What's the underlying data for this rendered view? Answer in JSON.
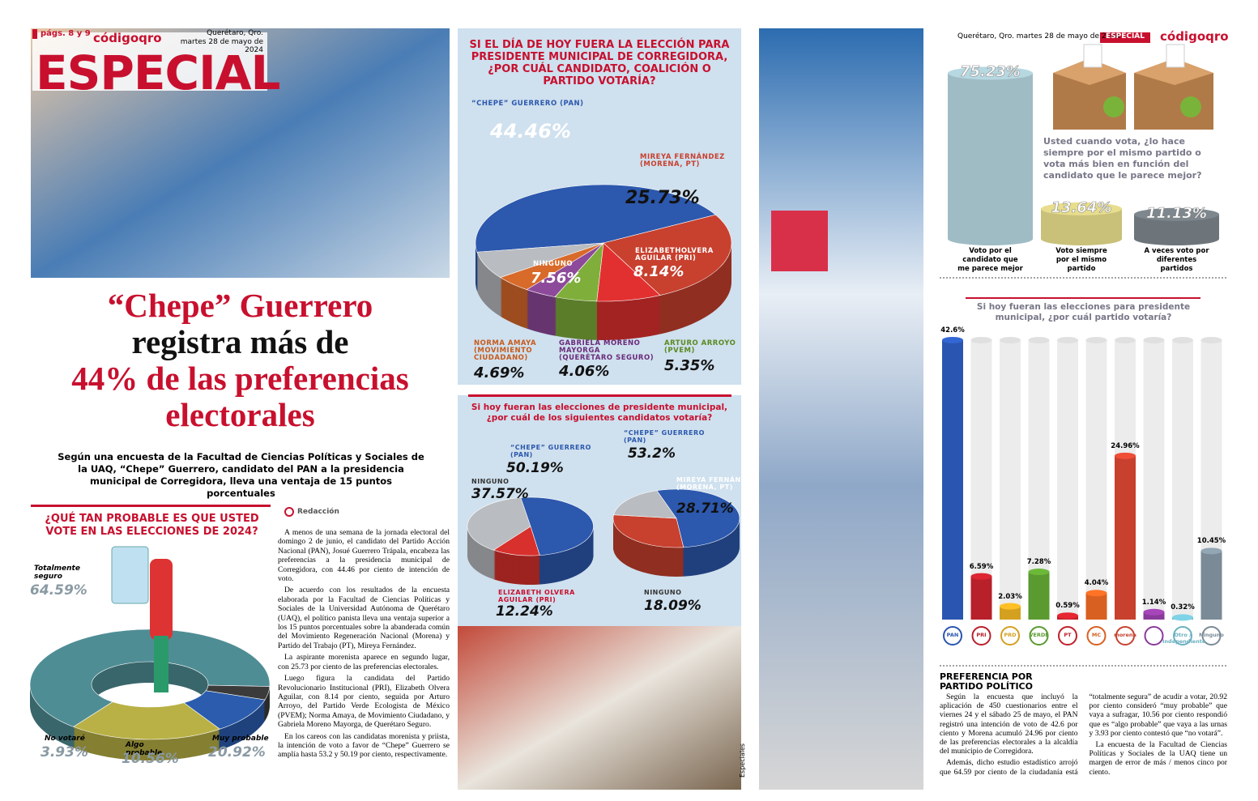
{
  "header": {
    "pages": "págs. 8 y 9",
    "brand": "códigoqro",
    "location": "Querétaro, Qro.",
    "date": "martes 28 de mayo de 2024",
    "section": "ESPECIAL"
  },
  "headline": [
    "“Chepe” Guerrero",
    "registra más de",
    "44% de las preferencias",
    "electorales"
  ],
  "subhead": "Según una encuesta de la Facultad de Ciencias Políticas y Sociales de la UAQ, “Chepe” Guerrero, candidato del PAN a la presidencia municipal de Corregidora, lleva una ventaja de 15 puntos porcentuales",
  "byline": "Redacción",
  "article": [
    "A menos de una semana de la jornada electoral del domingo 2 de junio, el candidato del Partido Acción Nacional (PAN), Josué Guerrero Trápala, encabeza las preferencias a la presidencia municipal de Corregidora, con 44.46 por ciento de intención de voto.",
    "De acuerdo con los resultados de la encuesta elaborada por la Facultad de Ciencias Políticas y Sociales de la Universidad Autónoma de Querétaro (UAQ), el político panista lleva una ventaja superior a los 15 puntos porcentuales sobre la abanderada común del Movimiento Regeneración Nacional (Morena) y Partido del Trabajo (PT), Mireya Fernández.",
    "La aspirante morenista aparece en segundo lugar, con 25.73 por ciento de las preferencias electorales.",
    "Luego figura la candidata del Partido Revolucionario Institucional (PRI), Elizabeth Olvera Aguilar, con 8.14 por ciento, seguida por Arturo Arroyo, del Partido Verde Ecologista de México (PVEM); Norma Amaya, de Movimiento Ciudadano, y Gabriela Moreno Mayorga, de Querétaro Seguro.",
    "En los careos con las candidatas morenista y priista, la intención de voto a favor de “Chepe” Guerrero se amplía hasta 53.2 y 50.19 por ciento, respectivamente."
  ],
  "photo_credit": "Especiales",
  "right_header": {
    "location_date": "Querétaro, Qro. martes 28 de mayo de 2024",
    "section": "ESPECIAL",
    "brand": "códigoqro"
  },
  "sidebar": {
    "title": "PREFERENCIA POR PARTIDO POLÍTICO",
    "paragraphs": [
      "Según la encuesta que incluyó la aplicación de 450 cuestionarios entre el viernes 24 y el sábado 25 de mayo, el PAN registró una intención de voto de 42.6 por ciento y Morena acumuló 24.96 por ciento de las preferencias electorales a la alcaldía del municipio de Corregidora.",
      "Además, dicho estudio estadístico arrojó que 64.59 por ciento de la ciudadanía está “totalmente segura” de acudir a votar, 20.92 por ciento consideró “muy probable” que vaya a sufragar, 10.56 por ciento respondió que es “algo probable” que vaya a las urnas y 3.93 por ciento contestó que “no votará”.",
      "La encuesta de la Facultad de Ciencias Políticas y Sociales de la UAQ tiene un margen de error de más / menos cinco por ciento."
    ]
  },
  "charts": {
    "likelihood": {
      "type": "donut",
      "title": "¿QUÉ TAN PROBABLE ES QUE USTED VOTE EN LAS ELECCIONES DE 2024?",
      "categories": [
        "Totalmente seguro",
        "No votaré",
        "Algo probable",
        "Muy probable"
      ],
      "values": [
        64.59,
        3.93,
        10.56,
        20.92
      ],
      "value_labels": [
        "64.59%",
        "3.93%",
        "10.56%",
        "20.92%"
      ],
      "colors": [
        "#4f8d95",
        "#3b3b3b",
        "#2b5cad",
        "#b9b146"
      ]
    },
    "candidates": {
      "type": "pie",
      "title": "SI EL DÍA DE HOY FUERA LA ELECCIÓN PARA PRESIDENTE MUNICIPAL DE CORREGIDORA, ¿POR CUÁL CANDIDATO, COALICIÓN O PARTIDO VOTARÍA?",
      "categories": [
        "“CHEPE” GUERRERO (PAN)",
        "MIREYA FERNÁNDEZ (MORENA, PT)",
        "ELIZABETHOLVERA AGUILAR (PRI)",
        "ARTURO ARROYO (PVEM)",
        "GABRIELA MORENO MAYORGA (QUERÉTARO SEGURO)",
        "NORMA AMAYA (MOVIMIENTO CIUDADANO)",
        "NINGUNO"
      ],
      "values": [
        44.46,
        25.73,
        8.14,
        5.35,
        4.06,
        4.69,
        7.56
      ],
      "value_labels": [
        "44.46%",
        "25.73%",
        "8.14%",
        "5.35%",
        "4.06%",
        "4.69%",
        "7.56%"
      ],
      "colors": [
        "#2c58ad",
        "#c8402e",
        "#e23030",
        "#7fae3a",
        "#8e4a9a",
        "#d86a2a",
        "#b9bcc0"
      ]
    },
    "runoff": {
      "title": "Si hoy fueran las elecciones de presidente municipal, ¿por cuál de los siguientes candidatos votaría?",
      "charts": [
        {
          "type": "pie",
          "categories": [
            "“CHEPE” GUERRERO (PAN)",
            "ELIZABETH OLVERA AGUILAR (PRI)",
            "NINGUNO"
          ],
          "values": [
            50.19,
            12.24,
            37.57
          ],
          "value_labels": [
            "50.19%",
            "12.24%",
            "37.57%"
          ],
          "colors": [
            "#2c58ad",
            "#d8302c",
            "#b9bcc0"
          ]
        },
        {
          "type": "pie",
          "categories": [
            "“CHEPE” GUERRERO (PAN)",
            "MIREYA FERNÁNDEZ (MORENA, PT)",
            "NINGUNO"
          ],
          "values": [
            53.2,
            28.71,
            18.09
          ],
          "value_labels": [
            "53.2%",
            "28.71%",
            "18.09%"
          ],
          "colors": [
            "#2c58ad",
            "#c8402e",
            "#b9bcc0"
          ]
        }
      ]
    },
    "voting_habit": {
      "type": "bar",
      "title": "Usted cuando vota, ¿lo hace siempre por el mismo partido o vota más bien en función del candidato que le parece mejor?",
      "categories": [
        "Voto por el candidato que me parece mejor",
        "Voto siempre por el mismo partido",
        "A veces voto por diferentes partidos"
      ],
      "values": [
        75.23,
        13.64,
        11.13
      ],
      "value_labels": [
        "75.23%",
        "13.64%",
        "11.13%"
      ],
      "colors": [
        "#9fbcc4",
        "#c9c07a",
        "#6d757b"
      ]
    },
    "parties": {
      "type": "bar",
      "title": "Si hoy fueran las elecciones para presidente municipal, ¿por cuál partido votaría?",
      "categories": [
        "PAN",
        "PRI",
        "PRD",
        "VERDE",
        "PT",
        "MC",
        "morena",
        null,
        "Otro / Independiente",
        "Ninguno"
      ],
      "values": [
        42.6,
        6.59,
        2.03,
        7.28,
        0.59,
        4.04,
        24.96,
        1.14,
        0.32,
        10.45
      ],
      "value_labels": [
        "42.6%",
        "6.59%",
        "2.03%",
        "7.28%",
        "0.59%",
        "4.04%",
        "24.96%",
        "1.14%",
        "0.32%",
        "10.45%"
      ],
      "colors": [
        "#2a55b0",
        "#b8202a",
        "#d4a020",
        "#5a9a30",
        "#c0202a",
        "#d86020",
        "#c8402e",
        "#8a3a9a",
        "#6ab0c0",
        "#7a8a96"
      ]
    }
  }
}
